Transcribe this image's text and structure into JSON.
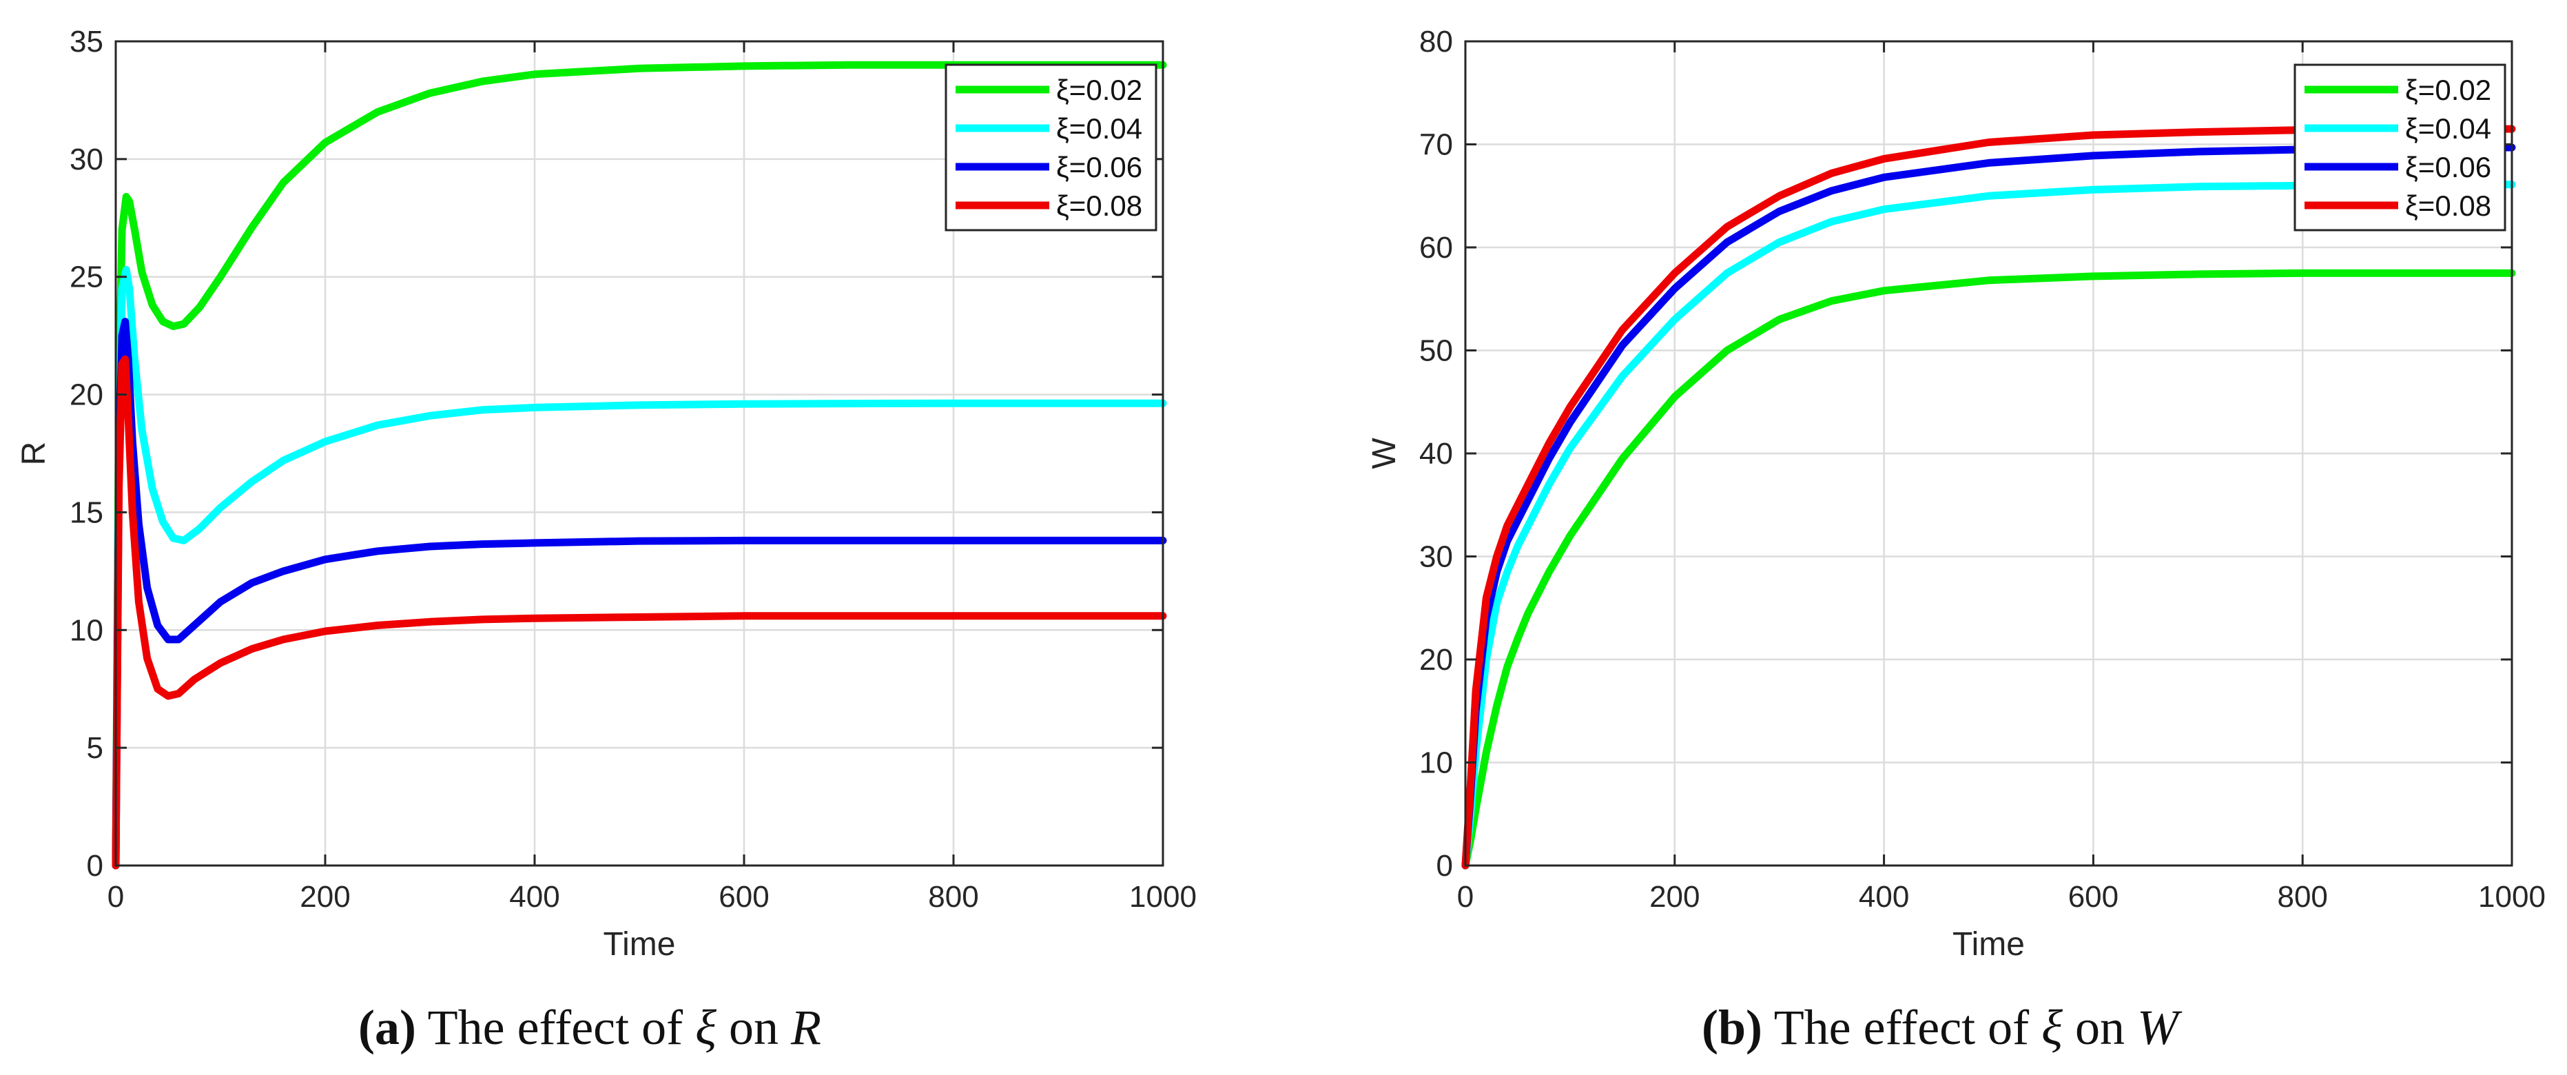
{
  "chart_data": [
    {
      "type": "line",
      "xlabel": "Time",
      "ylabel": "R",
      "xlim": [
        0,
        1000
      ],
      "ylim": [
        0,
        35
      ],
      "xticks": [
        0,
        200,
        400,
        600,
        800,
        1000
      ],
      "yticks": [
        0,
        5,
        10,
        15,
        20,
        25,
        30,
        35
      ],
      "grid": true,
      "legend_position": "top-right",
      "caption": {
        "label": "(a)",
        "prefix": "The effect of",
        "symbol": "ξ",
        "middle": "on",
        "variable": "R"
      },
      "series": [
        {
          "name": "ξ=0.02",
          "color": "#00ee00",
          "x": [
            0,
            3,
            6,
            10,
            13,
            18,
            25,
            35,
            45,
            55,
            65,
            80,
            100,
            130,
            160,
            200,
            250,
            300,
            350,
            400,
            500,
            600,
            700,
            800,
            900,
            1000
          ],
          "y": [
            0,
            20,
            27,
            28.4,
            28.2,
            27,
            25.2,
            23.8,
            23.1,
            22.9,
            23.0,
            23.7,
            25.0,
            27.1,
            29.0,
            30.7,
            32.0,
            32.8,
            33.3,
            33.6,
            33.85,
            33.95,
            34.0,
            34.0,
            34.0,
            34.0
          ]
        },
        {
          "name": "ξ=0.04",
          "color": "#00ffff",
          "x": [
            0,
            3,
            6,
            10,
            13,
            18,
            25,
            35,
            45,
            55,
            65,
            80,
            100,
            130,
            160,
            200,
            250,
            300,
            350,
            400,
            500,
            600,
            700,
            800,
            900,
            1000
          ],
          "y": [
            0,
            18,
            24.5,
            25.3,
            24.5,
            21.5,
            18.5,
            16.0,
            14.6,
            13.9,
            13.8,
            14.3,
            15.2,
            16.3,
            17.2,
            18.0,
            18.7,
            19.1,
            19.35,
            19.45,
            19.55,
            19.6,
            19.62,
            19.63,
            19.63,
            19.63
          ]
        },
        {
          "name": "ξ=0.06",
          "color": "#0000ee",
          "x": [
            0,
            3,
            6,
            9,
            12,
            16,
            22,
            30,
            40,
            50,
            60,
            75,
            100,
            130,
            160,
            200,
            250,
            300,
            350,
            400,
            500,
            600,
            700,
            800,
            900,
            1000
          ],
          "y": [
            0,
            17,
            22.5,
            23.1,
            21.5,
            18.0,
            14.5,
            11.8,
            10.2,
            9.6,
            9.6,
            10.2,
            11.2,
            12.0,
            12.5,
            13.0,
            13.35,
            13.55,
            13.65,
            13.7,
            13.78,
            13.8,
            13.8,
            13.8,
            13.8,
            13.8
          ]
        },
        {
          "name": "ξ=0.08",
          "color": "#ee0000",
          "x": [
            0,
            3,
            6,
            9,
            12,
            16,
            22,
            30,
            40,
            50,
            60,
            75,
            100,
            130,
            160,
            200,
            250,
            300,
            350,
            400,
            500,
            600,
            700,
            800,
            900,
            1000
          ],
          "y": [
            0,
            16,
            21.3,
            21.5,
            19.0,
            15.0,
            11.2,
            8.8,
            7.5,
            7.2,
            7.3,
            7.9,
            8.6,
            9.2,
            9.6,
            9.95,
            10.2,
            10.35,
            10.45,
            10.5,
            10.55,
            10.6,
            10.6,
            10.6,
            10.6,
            10.6
          ]
        }
      ]
    },
    {
      "type": "line",
      "xlabel": "Time",
      "ylabel": "W",
      "xlim": [
        0,
        1000
      ],
      "ylim": [
        0,
        80
      ],
      "xticks": [
        0,
        200,
        400,
        600,
        800,
        1000
      ],
      "yticks": [
        0,
        10,
        20,
        30,
        40,
        50,
        60,
        70,
        80
      ],
      "grid": true,
      "legend_position": "top-right",
      "caption": {
        "label": "(b)",
        "prefix": "The effect of",
        "symbol": "ξ",
        "middle": "on",
        "variable": "W"
      },
      "series": [
        {
          "name": "ξ=0.02",
          "color": "#00ee00",
          "x": [
            0,
            5,
            10,
            20,
            30,
            40,
            50,
            60,
            80,
            100,
            150,
            200,
            250,
            300,
            350,
            400,
            500,
            600,
            700,
            800,
            900,
            1000
          ],
          "y": [
            0,
            2.5,
            5.5,
            11,
            15.5,
            19.3,
            22,
            24.5,
            28.5,
            32,
            39.5,
            45.5,
            50,
            53,
            54.8,
            55.8,
            56.8,
            57.2,
            57.4,
            57.5,
            57.5,
            57.5
          ]
        },
        {
          "name": "ξ=0.04",
          "color": "#00ffff",
          "x": [
            0,
            5,
            10,
            20,
            30,
            40,
            50,
            60,
            80,
            100,
            150,
            200,
            250,
            300,
            350,
            400,
            500,
            600,
            700,
            800,
            900,
            1000
          ],
          "y": [
            0,
            5,
            11,
            20,
            25.5,
            28.5,
            31,
            33,
            37,
            40.5,
            47.5,
            53,
            57.5,
            60.5,
            62.5,
            63.7,
            65,
            65.6,
            65.9,
            66.0,
            66.1,
            66.1
          ]
        },
        {
          "name": "ξ=0.06",
          "color": "#0000ee",
          "x": [
            0,
            5,
            10,
            20,
            30,
            40,
            50,
            60,
            80,
            100,
            150,
            200,
            250,
            300,
            350,
            400,
            500,
            600,
            700,
            800,
            900,
            1000
          ],
          "y": [
            0,
            7,
            15,
            24,
            28.5,
            31.5,
            33.5,
            35.5,
            39.5,
            43,
            50.5,
            56,
            60.5,
            63.5,
            65.5,
            66.8,
            68.2,
            68.9,
            69.3,
            69.5,
            69.6,
            69.7
          ]
        },
        {
          "name": "ξ=0.08",
          "color": "#ee0000",
          "x": [
            0,
            5,
            10,
            20,
            30,
            40,
            50,
            60,
            80,
            100,
            150,
            200,
            250,
            300,
            350,
            400,
            500,
            600,
            700,
            800,
            900,
            1000
          ],
          "y": [
            0,
            8,
            17,
            26,
            30,
            33,
            35,
            37,
            41,
            44.5,
            52,
            57.5,
            62,
            65,
            67.2,
            68.6,
            70.2,
            70.9,
            71.2,
            71.4,
            71.5,
            71.5
          ]
        }
      ]
    }
  ]
}
